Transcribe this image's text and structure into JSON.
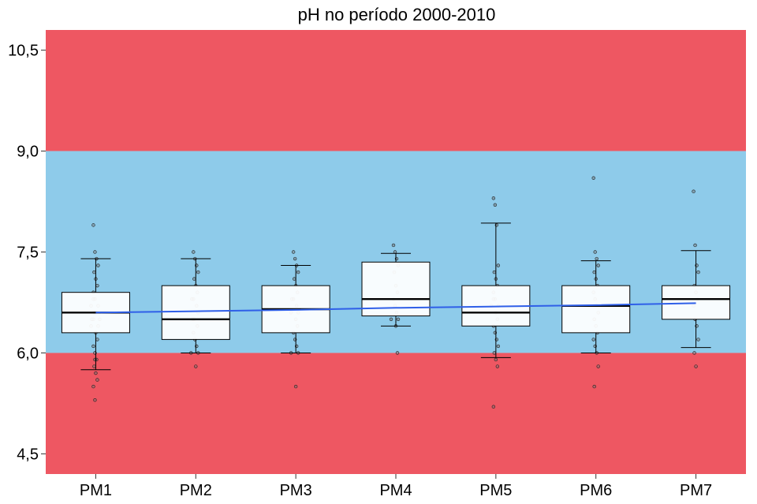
{
  "chart_data": {
    "type": "box",
    "title": "pH no período 2000-2010",
    "xlabel": "",
    "ylabel": "",
    "ylim": [
      4.2,
      10.8
    ],
    "yticks": [
      4.5,
      6.0,
      7.5,
      9.0,
      10.5
    ],
    "ytick_labels": [
      "4,5",
      "6,0",
      "7,5",
      "9,0",
      "10,5"
    ],
    "categories": [
      "PM1",
      "PM2",
      "PM3",
      "PM4",
      "PM5",
      "PM6",
      "PM7"
    ],
    "bands": [
      {
        "from": 9.0,
        "to": 10.8,
        "color": "#ee5762"
      },
      {
        "from": 6.0,
        "to": 9.0,
        "color": "#8ecbea"
      },
      {
        "from": 4.2,
        "to": 6.0,
        "color": "#ee5762"
      }
    ],
    "boxes": [
      {
        "category": "PM1",
        "whisker_low": 5.75,
        "q1": 6.3,
        "median": 6.6,
        "q3": 6.9,
        "whisker_high": 7.4
      },
      {
        "category": "PM2",
        "whisker_low": 6.0,
        "q1": 6.2,
        "median": 6.5,
        "q3": 7.0,
        "whisker_high": 7.4
      },
      {
        "category": "PM3",
        "whisker_low": 6.0,
        "q1": 6.3,
        "median": 6.65,
        "q3": 7.0,
        "whisker_high": 7.3
      },
      {
        "category": "PM4",
        "whisker_low": 6.4,
        "q1": 6.55,
        "median": 6.8,
        "q3": 7.35,
        "whisker_high": 7.48
      },
      {
        "category": "PM5",
        "whisker_low": 5.93,
        "q1": 6.4,
        "median": 6.6,
        "q3": 7.0,
        "whisker_high": 7.93
      },
      {
        "category": "PM6",
        "whisker_low": 6.0,
        "q1": 6.3,
        "median": 6.7,
        "q3": 7.0,
        "whisker_high": 7.37
      },
      {
        "category": "PM7",
        "whisker_low": 6.08,
        "q1": 6.5,
        "median": 6.8,
        "q3": 7.0,
        "whisker_high": 7.52
      }
    ],
    "trend_line": {
      "color": "#2f5fe8",
      "values": [
        6.6,
        6.62,
        6.64,
        6.67,
        6.69,
        6.71,
        6.74
      ]
    },
    "points": [
      {
        "category": "PM1",
        "values": [
          7.9,
          7.5,
          7.4,
          7.3,
          7.2,
          7.1,
          7.0,
          6.9,
          6.8,
          6.8,
          6.7,
          6.7,
          6.6,
          6.6,
          6.5,
          6.5,
          6.5,
          6.4,
          6.4,
          6.3,
          6.2,
          6.1,
          6.0,
          5.9,
          5.9,
          5.8,
          5.7,
          5.6,
          5.5,
          5.3
        ]
      },
      {
        "category": "PM2",
        "values": [
          7.5,
          7.4,
          7.3,
          7.2,
          7.1,
          7.0,
          6.9,
          6.8,
          6.8,
          6.7,
          6.6,
          6.5,
          6.5,
          6.4,
          6.3,
          6.2,
          6.1,
          6.0,
          6.0,
          5.8
        ]
      },
      {
        "category": "PM3",
        "values": [
          7.5,
          7.4,
          7.3,
          7.2,
          7.1,
          7.0,
          6.9,
          6.8,
          6.8,
          6.7,
          6.6,
          6.6,
          6.5,
          6.4,
          6.3,
          6.2,
          6.1,
          6.0,
          6.0,
          5.5
        ]
      },
      {
        "category": "PM4",
        "values": [
          7.6,
          7.5,
          7.4,
          7.3,
          7.2,
          7.0,
          6.9,
          6.8,
          6.7,
          6.6,
          6.5,
          6.5,
          6.4,
          6.0
        ]
      },
      {
        "category": "PM5",
        "values": [
          8.3,
          8.2,
          7.9,
          7.3,
          7.2,
          7.1,
          7.0,
          6.9,
          6.8,
          6.8,
          6.7,
          6.7,
          6.6,
          6.5,
          6.4,
          6.3,
          6.2,
          6.1,
          6.0,
          5.9,
          5.8,
          5.2
        ]
      },
      {
        "category": "PM6",
        "values": [
          8.6,
          7.5,
          7.4,
          7.3,
          7.2,
          7.1,
          7.0,
          6.9,
          6.8,
          6.7,
          6.6,
          6.5,
          6.4,
          6.3,
          6.2,
          6.1,
          6.0,
          5.8,
          5.5
        ]
      },
      {
        "category": "PM7",
        "values": [
          8.4,
          7.6,
          7.3,
          7.2,
          7.0,
          6.9,
          6.8,
          6.7,
          6.5,
          6.4,
          6.2,
          6.0,
          5.8
        ]
      }
    ],
    "legend": "none",
    "grid": false
  }
}
